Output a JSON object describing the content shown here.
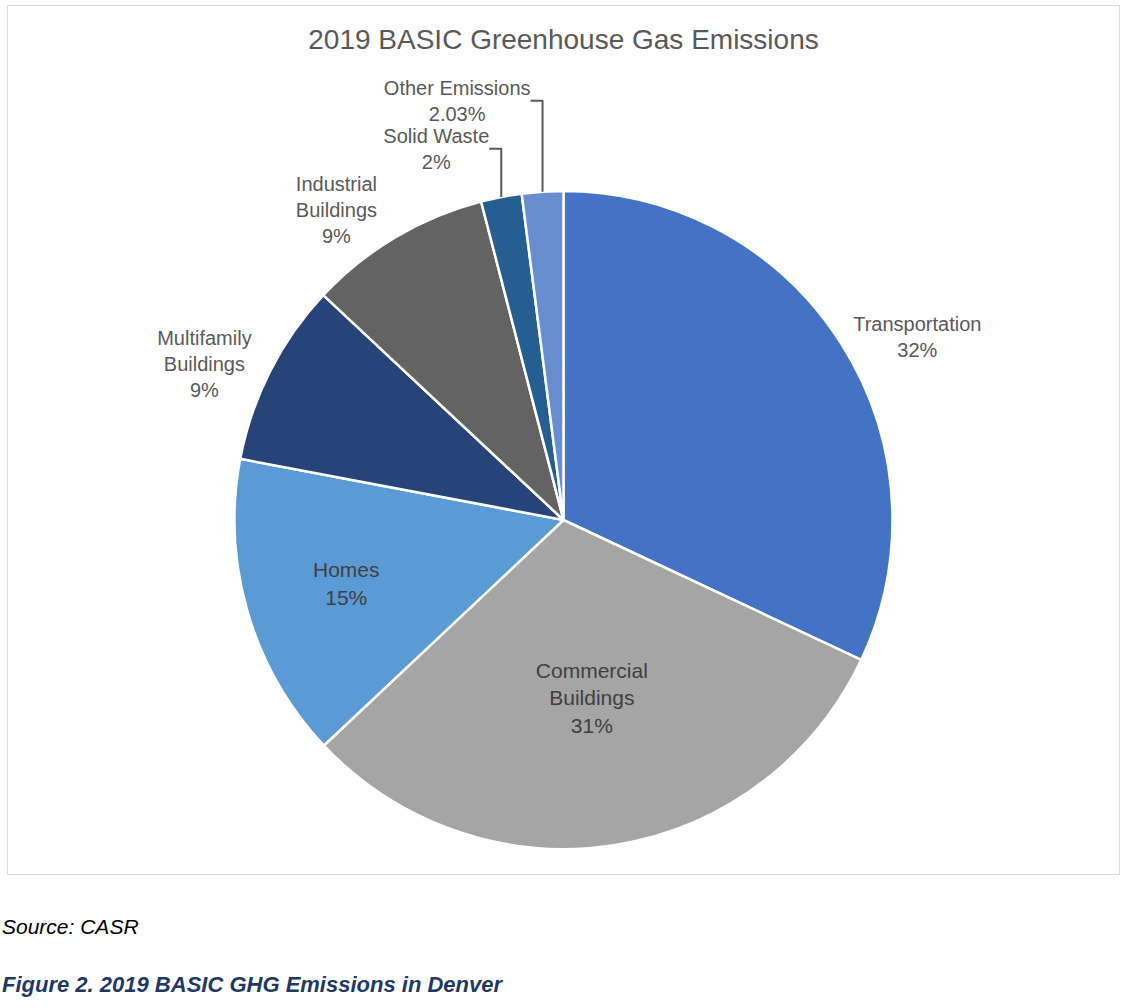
{
  "chart_data": {
    "type": "pie",
    "title": "2019 BASIC Greenhouse Gas Emissions",
    "categories": [
      "Transportation",
      "Commercial Buildings",
      "Homes",
      "Multifamily Buildings",
      "Industrial Buildings",
      "Solid Waste",
      "Other Emissions"
    ],
    "values": [
      32,
      31,
      15,
      9,
      9,
      2,
      2.03
    ],
    "value_labels": [
      "32%",
      "31%",
      "15%",
      "9%",
      "9%",
      "2%",
      "2.03%"
    ],
    "colors": [
      "#4472c4",
      "#a5a5a5",
      "#5b9bd5",
      "#264478",
      "#636363",
      "#255e91",
      "#698ed0"
    ],
    "data_labels": true
  },
  "source": "Source: CASR",
  "caption": "Figure 2. 2019 BASIC GHG Emissions in Denver"
}
